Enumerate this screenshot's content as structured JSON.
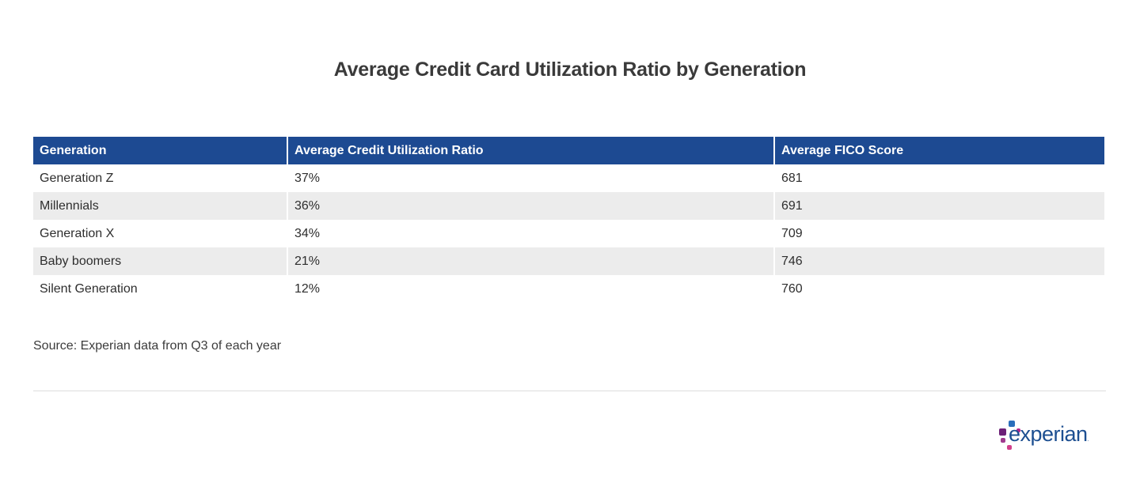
{
  "title": "Average Credit Card Utilization Ratio by Generation",
  "chart_data": {
    "type": "table",
    "title": "Average Credit Card Utilization Ratio by Generation",
    "columns": [
      "Generation",
      "Average Credit Utilization Ratio",
      "Average FICO Score"
    ],
    "rows": [
      [
        "Generation Z",
        "37%",
        "681"
      ],
      [
        "Millennials",
        "36%",
        "691"
      ],
      [
        "Generation X",
        "34%",
        "709"
      ],
      [
        "Baby boomers",
        "21%",
        "746"
      ],
      [
        "Silent Generation",
        "12%",
        "760"
      ]
    ],
    "header_color": "#1d4a92",
    "stripe_color": "#ececec"
  },
  "source": "Source: Experian data from Q3 of each year",
  "logo": {
    "text": "experian",
    "tm": "TM"
  }
}
